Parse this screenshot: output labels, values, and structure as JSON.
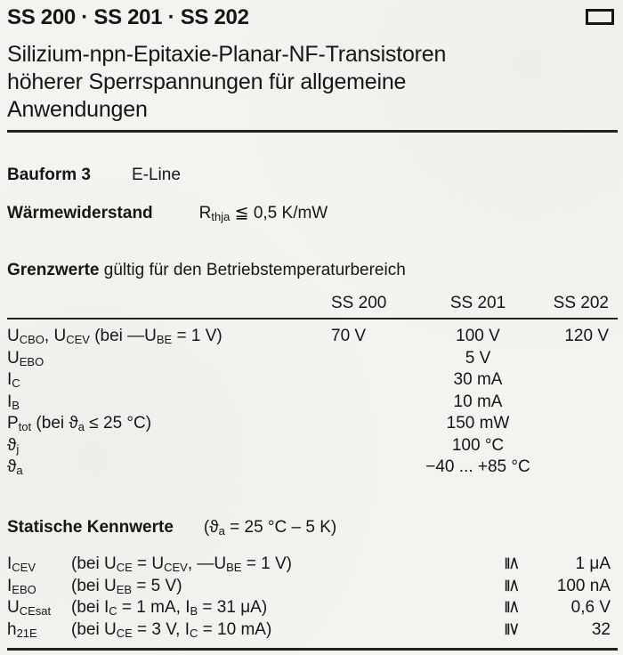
{
  "header": {
    "title": "SS 200 · SS 201 · SS 202",
    "subtitle_lines": [
      "Silizium-npn-Epitaxie-Planar-NF-Transistoren",
      "höherer Sperrspannungen für allgemeine",
      "Anwendungen"
    ],
    "corner_icon": "rectangle-outline-icon"
  },
  "specs": {
    "bauform_label": "Bauform 3",
    "bauform_value": "E-Line",
    "thermal_label": "Wärmewiderstand",
    "thermal_value": "R[thja] ≦ 0,5 K/mW"
  },
  "limits": {
    "heading_bold": "Grenzwerte",
    "heading_rest": " gültig für den Betriebstemperaturbereich",
    "columns": [
      "SS 200",
      "SS 201",
      "SS 202"
    ],
    "rows": [
      {
        "label": "U[CBO], U[CEV] (bei —U[BE] = 1 V)",
        "values": [
          "70 V",
          "100 V",
          "120 V"
        ]
      },
      {
        "label": "U[EBO]",
        "shared": "5 V"
      },
      {
        "label": "I[C]",
        "shared": "30 mA"
      },
      {
        "label": "I[B]",
        "shared": "10 mA"
      },
      {
        "label": "P[tot] (bei ϑ[a] ≤ 25 °C)",
        "shared": "150 mW"
      },
      {
        "label": "ϑ[j]",
        "shared": "100 °C"
      },
      {
        "label": "ϑ[a]",
        "shared": "−40 ... +85 °C"
      }
    ]
  },
  "static": {
    "heading_bold": "Statische Kennwerte",
    "heading_condition": "(ϑ[a] = 25 °C – 5 K)",
    "rows": [
      {
        "symbol": "I[CEV]",
        "condition": "(bei U[CE] = U[CEV], —U[BE] = 1 V)",
        "relation": "≦",
        "value": "1 μA"
      },
      {
        "symbol": "I[EBO]",
        "condition": "(bei U[EB] = 5 V)",
        "relation": "≦",
        "value": "100 nA"
      },
      {
        "symbol": "U[CEsat]",
        "condition": "(bei I[C]  = 1 mA, I[B] = 31 μA)",
        "relation": "≦",
        "value": "0,6 V"
      },
      {
        "symbol": "h[21E]",
        "condition": "(bei U[CE] = 3 V,  I[C] = 10 mA)",
        "relation": "≧",
        "value": "32"
      }
    ]
  },
  "colors": {
    "ink": "#161616",
    "paper": "#f4f3ef"
  }
}
